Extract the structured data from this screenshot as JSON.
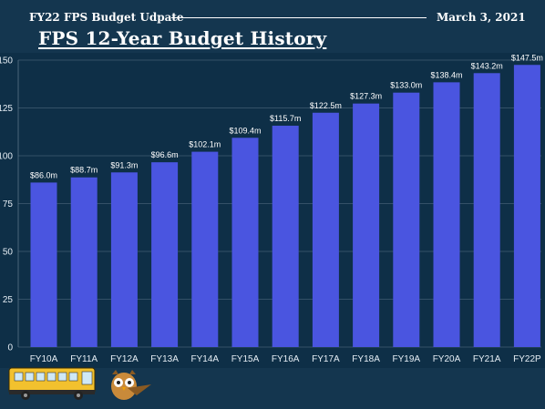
{
  "header": {
    "doc_title": "FY22 FPS Budget Udpate",
    "date": "March 3, 2021",
    "chart_title": "FPS 12-Year Budget History"
  },
  "colors": {
    "background": "#14364f",
    "panel": "#0e2f47",
    "bar": "#4a55e0",
    "grid": "#5b7487",
    "text": "#ffffff"
  },
  "footer": {
    "left_icon": "school-bus-icon",
    "right_icon": "owl-mascot-icon"
  },
  "chart_data": {
    "type": "bar",
    "title": "FPS 12-Year Budget History",
    "xlabel": "",
    "ylabel": "",
    "categories": [
      "FY10A",
      "FY11A",
      "FY12A",
      "FY13A",
      "FY14A",
      "FY15A",
      "FY16A",
      "FY17A",
      "FY18A",
      "FY19A",
      "FY20A",
      "FY21A",
      "FY22P"
    ],
    "values": [
      86.0,
      88.7,
      91.3,
      96.6,
      102.1,
      109.4,
      115.7,
      122.5,
      127.3,
      133.0,
      138.4,
      143.2,
      147.5
    ],
    "value_labels": [
      "$86.0m",
      "$88.7m",
      "$91.3m",
      "$96.6m",
      "$102.1m",
      "$109.4m",
      "$115.7m",
      "$122.5m",
      "$127.3m",
      "$133.0m",
      "$138.4m",
      "$143.2m",
      "$147.5m"
    ],
    "ylim": [
      0,
      150
    ],
    "yticks": [
      0,
      25,
      50,
      75,
      100,
      125,
      150
    ],
    "grid": true,
    "legend": "none"
  }
}
